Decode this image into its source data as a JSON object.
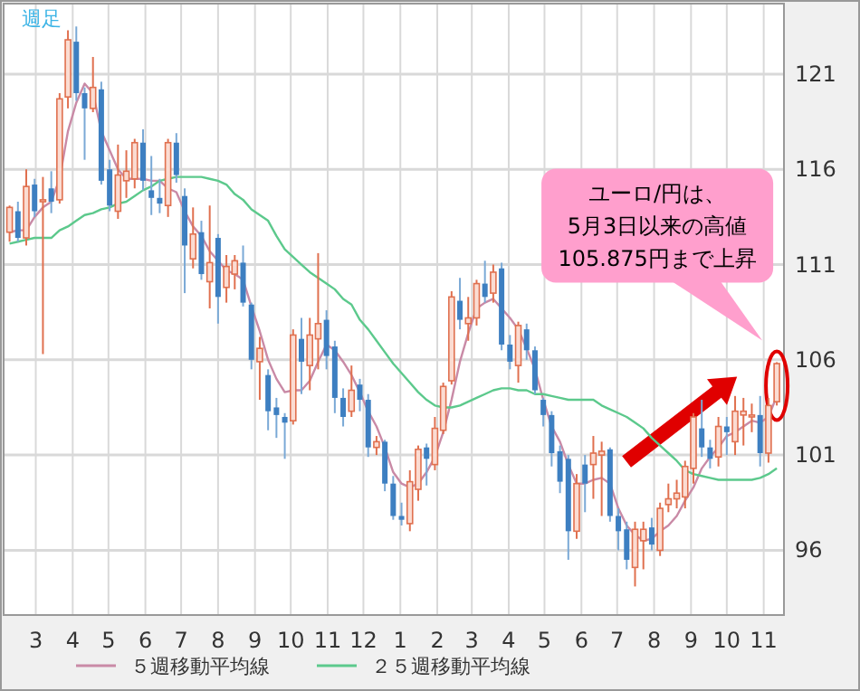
{
  "chart_data": {
    "type": "candlestick",
    "title": "週足",
    "x": [
      "2011-02-07",
      "2011-02-14",
      "2011-02-21",
      "2011-02-28",
      "2011-03-07",
      "2011-03-14",
      "2011-03-21",
      "2011-03-28",
      "2011-04-04",
      "2011-04-11",
      "2011-04-18",
      "2011-04-25",
      "2011-05-02",
      "2011-05-09",
      "2011-05-16",
      "2011-05-23",
      "2011-05-30",
      "2011-06-06",
      "2011-06-13",
      "2011-06-20",
      "2011-06-27",
      "2011-07-04",
      "2011-07-11",
      "2011-07-18",
      "2011-07-25",
      "2011-08-01",
      "2011-08-08",
      "2011-08-15",
      "2011-08-22",
      "2011-08-29",
      "2011-09-05",
      "2011-09-12",
      "2011-09-19",
      "2011-09-26",
      "2011-10-03",
      "2011-10-10",
      "2011-10-17",
      "2011-10-24",
      "2011-10-31",
      "2011-11-07",
      "2011-11-14",
      "2011-11-21",
      "2011-11-28",
      "2011-12-05",
      "2011-12-12",
      "2011-12-19",
      "2011-12-26",
      "2012-01-02",
      "2012-01-09",
      "2012-01-16",
      "2012-01-23",
      "2012-01-30",
      "2012-02-06",
      "2012-02-13",
      "2012-02-20",
      "2012-02-27",
      "2012-03-05",
      "2012-03-12",
      "2012-03-19",
      "2012-03-26",
      "2012-04-02",
      "2012-04-09",
      "2012-04-16",
      "2012-04-23",
      "2012-04-30",
      "2012-05-07",
      "2012-05-14",
      "2012-05-21",
      "2012-05-28",
      "2012-06-04",
      "2012-06-11",
      "2012-06-18",
      "2012-06-25",
      "2012-07-02",
      "2012-07-09",
      "2012-07-16",
      "2012-07-23",
      "2012-07-30",
      "2012-08-06",
      "2012-08-13",
      "2012-08-20",
      "2012-08-27",
      "2012-09-03",
      "2012-09-10",
      "2012-09-17",
      "2012-09-24",
      "2012-10-01",
      "2012-10-08",
      "2012-10-15",
      "2012-10-22",
      "2012-10-29",
      "2012-11-05",
      "2012-11-12"
    ],
    "ohlc": [
      [
        112.7,
        114.1,
        112.2,
        114.0
      ],
      [
        113.8,
        114.3,
        112.2,
        112.4
      ],
      [
        112.4,
        116.0,
        112.0,
        115.1
      ],
      [
        115.2,
        115.5,
        113.5,
        113.8
      ],
      [
        114.3,
        115.6,
        106.3,
        114.4
      ],
      [
        115.0,
        115.9,
        113.7,
        114.3
      ],
      [
        114.4,
        120.0,
        114.2,
        119.7
      ],
      [
        119.8,
        123.3,
        119.2,
        122.8
      ],
      [
        122.7,
        123.5,
        119.6,
        120.0
      ],
      [
        120.0,
        120.3,
        116.5,
        119.2
      ],
      [
        119.2,
        121.9,
        119.0,
        120.3
      ],
      [
        120.2,
        120.6,
        115.2,
        115.4
      ],
      [
        116.0,
        116.5,
        113.8,
        114.1
      ],
      [
        113.8,
        117.3,
        113.4,
        115.7
      ],
      [
        115.4,
        117.0,
        114.5,
        115.9
      ],
      [
        115.5,
        117.6,
        115.0,
        117.4
      ],
      [
        117.4,
        118.1,
        114.9,
        115.4
      ],
      [
        114.9,
        116.7,
        113.6,
        114.5
      ],
      [
        114.5,
        115.5,
        113.7,
        114.2
      ],
      [
        114.1,
        117.6,
        113.5,
        117.4
      ],
      [
        117.4,
        117.9,
        115.3,
        115.7
      ],
      [
        114.6,
        115.0,
        109.5,
        112.0
      ],
      [
        111.3,
        114.0,
        110.8,
        112.6
      ],
      [
        112.7,
        113.3,
        110.2,
        110.5
      ],
      [
        110.1,
        114.1,
        108.7,
        111.1
      ],
      [
        112.4,
        112.6,
        107.9,
        109.3
      ],
      [
        109.8,
        111.5,
        109.0,
        110.9
      ],
      [
        110.5,
        111.5,
        109.7,
        111.2
      ],
      [
        111.1,
        112.0,
        108.8,
        109.0
      ],
      [
        108.9,
        109.0,
        105.5,
        106.0
      ],
      [
        105.9,
        107.2,
        103.9,
        106.6
      ],
      [
        105.2,
        105.5,
        102.3,
        103.3
      ],
      [
        103.5,
        104.0,
        101.9,
        103.1
      ],
      [
        103.0,
        103.2,
        100.8,
        102.7
      ],
      [
        102.8,
        107.6,
        102.6,
        107.3
      ],
      [
        107.1,
        108.2,
        104.2,
        105.9
      ],
      [
        105.7,
        108.2,
        104.4,
        107.3
      ],
      [
        107.1,
        111.6,
        105.5,
        107.9
      ],
      [
        108.1,
        108.6,
        105.5,
        106.2
      ],
      [
        106.7,
        107.0,
        103.2,
        104.0
      ],
      [
        104.0,
        104.5,
        102.5,
        103.0
      ],
      [
        103.3,
        105.7,
        103.0,
        104.4
      ],
      [
        104.7,
        105.0,
        103.3,
        103.9
      ],
      [
        103.9,
        104.2,
        100.9,
        101.4
      ],
      [
        101.4,
        102.0,
        101.0,
        101.7
      ],
      [
        101.7,
        101.8,
        99.1,
        99.5
      ],
      [
        99.5,
        99.9,
        97.6,
        97.8
      ],
      [
        97.8,
        98.5,
        97.3,
        97.6
      ],
      [
        97.4,
        100.2,
        97.0,
        99.6
      ],
      [
        99.2,
        101.5,
        98.6,
        101.3
      ],
      [
        101.4,
        101.6,
        99.4,
        100.8
      ],
      [
        100.5,
        103.0,
        100.2,
        102.4
      ],
      [
        102.3,
        104.8,
        102.1,
        104.6
      ],
      [
        104.9,
        109.6,
        104.7,
        109.3
      ],
      [
        109.1,
        110.3,
        107.6,
        108.1
      ],
      [
        107.9,
        109.3,
        107.0,
        108.2
      ],
      [
        108.2,
        110.2,
        107.8,
        110.0
      ],
      [
        110.0,
        111.2,
        109.0,
        109.3
      ],
      [
        109.5,
        111.0,
        109.0,
        110.6
      ],
      [
        110.8,
        111.1,
        106.5,
        106.8
      ],
      [
        106.8,
        107.3,
        105.5,
        105.9
      ],
      [
        105.7,
        108.0,
        104.8,
        107.8
      ],
      [
        107.6,
        107.9,
        106.0,
        106.5
      ],
      [
        106.5,
        106.7,
        104.2,
        104.4
      ],
      [
        103.9,
        104.0,
        102.5,
        103.1
      ],
      [
        103.1,
        103.3,
        100.4,
        101.1
      ],
      [
        101.2,
        101.5,
        99.0,
        99.6
      ],
      [
        100.8,
        101.0,
        95.5,
        97.0
      ],
      [
        97.0,
        100.0,
        96.6,
        99.5
      ],
      [
        100.5,
        101.0,
        98.0,
        99.5
      ],
      [
        100.5,
        102.0,
        98.7,
        101.1
      ],
      [
        101.0,
        101.7,
        97.8,
        101.2
      ],
      [
        101.3,
        101.4,
        97.5,
        97.8
      ],
      [
        97.8,
        98.2,
        96.0,
        97.0
      ],
      [
        97.1,
        97.5,
        95.0,
        95.5
      ],
      [
        95.1,
        97.5,
        94.1,
        97.1
      ],
      [
        96.5,
        97.5,
        95.0,
        97.1
      ],
      [
        97.2,
        97.7,
        96.0,
        96.3
      ],
      [
        96.0,
        98.5,
        95.7,
        98.2
      ],
      [
        98.4,
        99.5,
        98.0,
        98.7
      ],
      [
        98.7,
        99.7,
        98.2,
        99.0
      ],
      [
        98.8,
        100.7,
        98.2,
        100.4
      ],
      [
        100.3,
        103.2,
        99.5,
        103.0
      ],
      [
        102.4,
        103.9,
        100.9,
        101.4
      ],
      [
        101.4,
        101.8,
        100.3,
        100.8
      ],
      [
        100.9,
        103.0,
        100.4,
        102.5
      ],
      [
        102.5,
        103.0,
        101.0,
        102.2
      ],
      [
        101.7,
        104.1,
        101.0,
        103.3
      ],
      [
        103.1,
        104.0,
        101.5,
        103.3
      ],
      [
        103.0,
        103.7,
        102.2,
        103.1
      ],
      [
        103.1,
        104.1,
        100.4,
        101.1
      ],
      [
        101.1,
        104.0,
        100.6,
        103.6
      ],
      [
        103.8,
        105.875,
        103.6,
        105.8
      ]
    ],
    "series": [
      {
        "name": "５週移動平均線",
        "type": "line",
        "color": "#c98aa6",
        "values": [
          112.7,
          112.8,
          112.8,
          113.5,
          114.0,
          114.3,
          115.5,
          118.0,
          119.5,
          120.5,
          120.0,
          118.0,
          117.0,
          116.0,
          115.5,
          115.5,
          115.5,
          115.4,
          115.4,
          115.0,
          114.8,
          113.8,
          113.0,
          112.5,
          111.7,
          111.2,
          110.7,
          110.5,
          110.2,
          108.8,
          107.5,
          106.0,
          105.0,
          104.3,
          104.4,
          104.4,
          104.9,
          105.9,
          106.8,
          106.5,
          105.9,
          105.2,
          104.3,
          103.3,
          102.5,
          101.4,
          100.1,
          99.5,
          99.3,
          99.5,
          100.1,
          100.9,
          102.2,
          103.9,
          105.9,
          107.4,
          108.7,
          109.0,
          109.2,
          108.7,
          108.2,
          107.6,
          106.6,
          105.5,
          103.9,
          102.5,
          101.7,
          100.5,
          99.5,
          99.5,
          99.7,
          99.8,
          99.5,
          98.2,
          97.3,
          96.8,
          96.5,
          96.6,
          97.0,
          97.3,
          97.8,
          98.6,
          99.3,
          100.3,
          100.9,
          101.4,
          102.0,
          102.2,
          102.5,
          102.8,
          102.7,
          103.0,
          104.1
        ]
      },
      {
        "name": "２５週移動平均線",
        "type": "line",
        "color": "#5cc98c",
        "values": [
          112.1,
          112.2,
          112.3,
          112.4,
          112.4,
          112.4,
          112.8,
          113.0,
          113.3,
          113.6,
          113.7,
          113.9,
          114.0,
          114.2,
          114.3,
          114.6,
          114.9,
          115.1,
          115.4,
          115.5,
          115.6,
          115.6,
          115.6,
          115.6,
          115.5,
          115.4,
          115.2,
          114.7,
          114.4,
          113.9,
          113.6,
          113.3,
          112.5,
          111.8,
          111.4,
          111.0,
          110.6,
          110.3,
          110.0,
          109.7,
          109.2,
          108.9,
          108.1,
          107.6,
          107.0,
          106.4,
          105.8,
          105.3,
          104.8,
          104.3,
          103.9,
          103.6,
          103.5,
          103.5,
          103.6,
          103.8,
          104.0,
          104.2,
          104.4,
          104.5,
          104.5,
          104.4,
          104.4,
          104.2,
          104.2,
          104.1,
          104.0,
          103.9,
          103.9,
          103.9,
          103.9,
          103.6,
          103.4,
          103.2,
          103.0,
          102.7,
          102.4,
          101.9,
          101.5,
          101.1,
          100.7,
          100.2,
          100.0,
          99.9,
          99.8,
          99.7,
          99.7,
          99.7,
          99.7,
          99.7,
          99.8,
          100.0,
          100.3
        ]
      }
    ],
    "xlim": [
      "2011-02-02",
      "2012-11-18"
    ],
    "xticks": [
      {
        "value": "2011-03-01",
        "label": "3"
      },
      {
        "value": "2011-04-01",
        "label": "4"
      },
      {
        "value": "2011-05-01",
        "label": "5"
      },
      {
        "value": "2011-06-01",
        "label": "6"
      },
      {
        "value": "2011-07-01",
        "label": "7"
      },
      {
        "value": "2011-08-01",
        "label": "8"
      },
      {
        "value": "2011-09-01",
        "label": "9"
      },
      {
        "value": "2011-10-01",
        "label": "10"
      },
      {
        "value": "2011-11-01",
        "label": "11"
      },
      {
        "value": "2011-12-01",
        "label": "12"
      },
      {
        "value": "2012-01-01",
        "label": "1"
      },
      {
        "value": "2012-02-01",
        "label": "2"
      },
      {
        "value": "2012-03-01",
        "label": "3"
      },
      {
        "value": "2012-04-01",
        "label": "4"
      },
      {
        "value": "2012-05-01",
        "label": "5"
      },
      {
        "value": "2012-06-01",
        "label": "6"
      },
      {
        "value": "2012-07-01",
        "label": "7"
      },
      {
        "value": "2012-08-01",
        "label": "8"
      },
      {
        "value": "2012-09-01",
        "label": "9"
      },
      {
        "value": "2012-10-01",
        "label": "10"
      },
      {
        "value": "2012-11-01",
        "label": "11"
      }
    ],
    "ylim": [
      92.6,
      124.7
    ],
    "yticks": [
      96,
      101,
      106,
      111,
      116,
      121
    ],
    "grid": true,
    "legend": "bottom",
    "annotations": [
      "ユーロ/円は、\n5月3日以来の高値\n105.875円まで上昇"
    ]
  }
}
